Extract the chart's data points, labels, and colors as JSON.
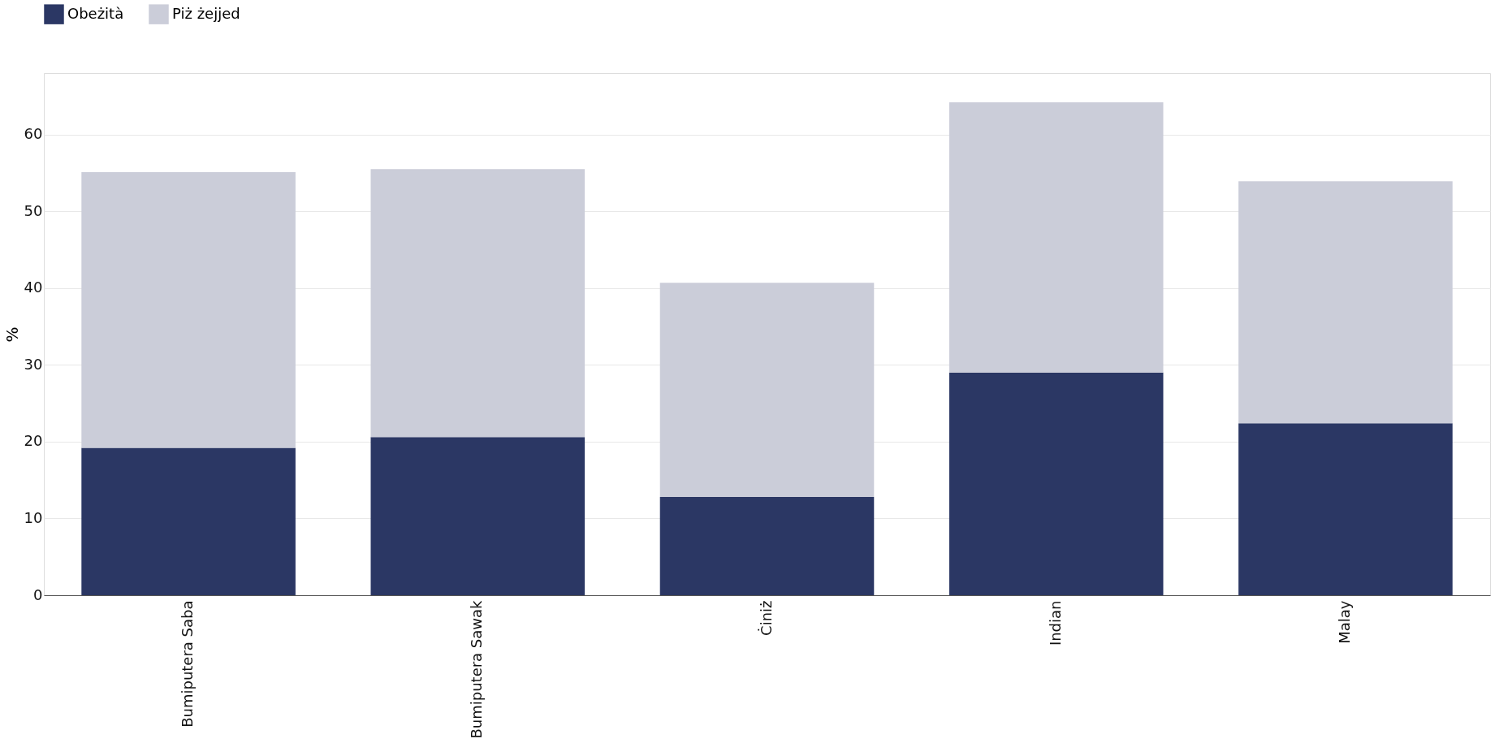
{
  "chart_data": {
    "type": "bar",
    "stacked": true,
    "ylabel": "%",
    "categories": [
      "Bumiputera Saba",
      "Bumiputera Sawak",
      "Ċiniż",
      "Indian",
      "Malay"
    ],
    "series": [
      {
        "name": "Obeżità",
        "color": "#2b3764",
        "values": [
          19.2,
          20.6,
          12.8,
          29.0,
          22.4
        ]
      },
      {
        "name": "Piż żejjed",
        "color": "#cbcdd9",
        "values": [
          35.9,
          34.9,
          27.9,
          35.2,
          31.5
        ]
      }
    ],
    "ylim": [
      0,
      68
    ],
    "yticks": [
      0,
      10,
      20,
      30,
      40,
      50,
      60
    ],
    "grid": "y",
    "legend": "top left"
  }
}
